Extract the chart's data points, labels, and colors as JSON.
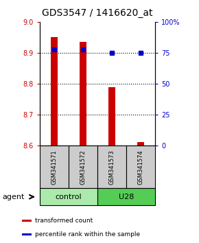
{
  "title": "GDS3547 / 1416620_at",
  "samples": [
    "GSM341571",
    "GSM341572",
    "GSM341573",
    "GSM341574"
  ],
  "bar_values": [
    8.95,
    8.935,
    8.79,
    8.612
  ],
  "bar_base": 8.6,
  "percentile_values": [
    78,
    78,
    75,
    75
  ],
  "ylim_left": [
    8.6,
    9.0
  ],
  "ylim_right": [
    0,
    100
  ],
  "yticks_left": [
    8.6,
    8.7,
    8.8,
    8.9,
    9.0
  ],
  "yticks_right": [
    0,
    25,
    50,
    75,
    100
  ],
  "ytick_labels_right": [
    "0",
    "25",
    "50",
    "75",
    "100%"
  ],
  "bar_color": "#cc0000",
  "percentile_color": "#0000cc",
  "dotted_line_y": [
    8.7,
    8.8,
    8.9
  ],
  "groups": [
    {
      "label": "control",
      "samples": [
        0,
        1
      ],
      "color": "#aaeaaa"
    },
    {
      "label": "U28",
      "samples": [
        2,
        3
      ],
      "color": "#55cc55"
    }
  ],
  "legend_items": [
    {
      "color": "#cc0000",
      "label": "transformed count"
    },
    {
      "color": "#0000cc",
      "label": "percentile rank within the sample"
    }
  ],
  "agent_label": "agent",
  "sample_box_color": "#cccccc",
  "title_fontsize": 10,
  "tick_fontsize": 7,
  "bar_width": 0.25
}
